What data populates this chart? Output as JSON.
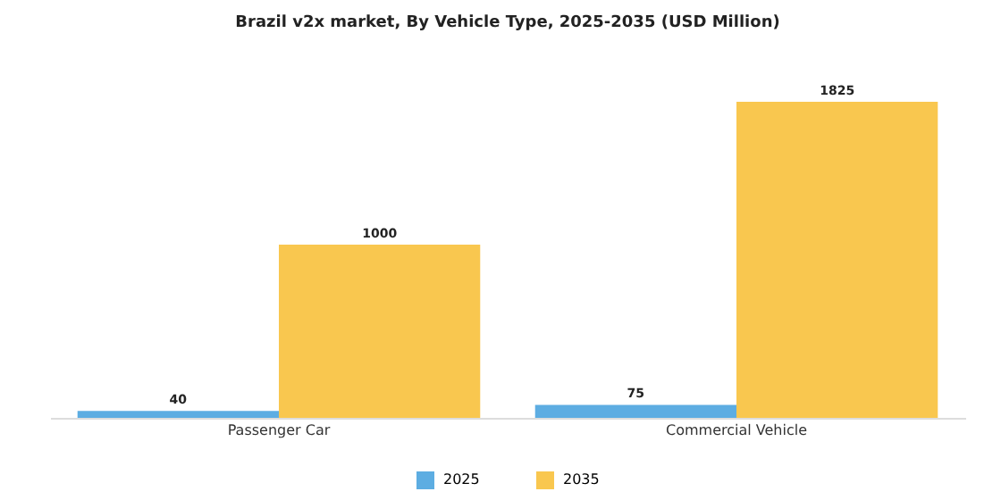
{
  "chart_data": {
    "type": "bar",
    "title": "Brazil v2x market, By Vehicle Type, 2025-2035 (USD Million)",
    "categories": [
      "Passenger Car",
      "Commercial Vehicle"
    ],
    "series": [
      {
        "name": "2025",
        "color": "#5dade2",
        "values": [
          40,
          75
        ]
      },
      {
        "name": "2035",
        "color": "#f9c74f",
        "values": [
          1000,
          1825
        ]
      }
    ],
    "data_labels": true,
    "legend": "bottom"
  }
}
